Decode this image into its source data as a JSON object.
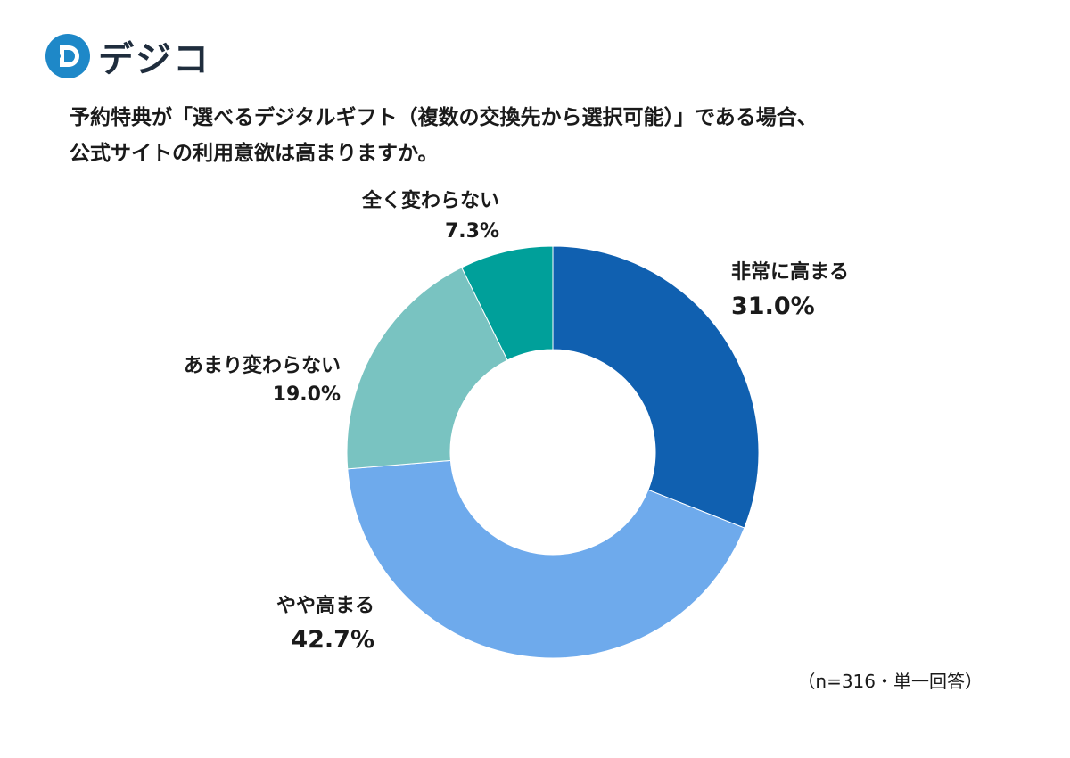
{
  "brand": {
    "name": "デジコ",
    "colors": {
      "mark": "#1e88c8",
      "text": "#1f2d3d"
    }
  },
  "title_lines": [
    "予約特典が「選べるデジタルギフト（複数の交換先から選択可能）」である場合、",
    "公式サイトの利用意欲は高まりますか。"
  ],
  "note": "（n=316・単一回答）",
  "chart_data": {
    "type": "pie",
    "variant": "donut",
    "unit": "%",
    "slices": [
      {
        "label": "非常に高まる",
        "value": 31.0,
        "value_label": "31.0%",
        "color": "#1060b0"
      },
      {
        "label": "やや高まる",
        "value": 42.7,
        "value_label": "42.7%",
        "color": "#6eaaec"
      },
      {
        "label": "あまり変わらない",
        "value": 19.0,
        "value_label": "19.0%",
        "color": "#79c3c1"
      },
      {
        "label": "全く変わらない",
        "value": 7.3,
        "value_label": "7.3%",
        "color": "#00a09a"
      }
    ],
    "start_angle": "top",
    "direction": "clockwise"
  }
}
